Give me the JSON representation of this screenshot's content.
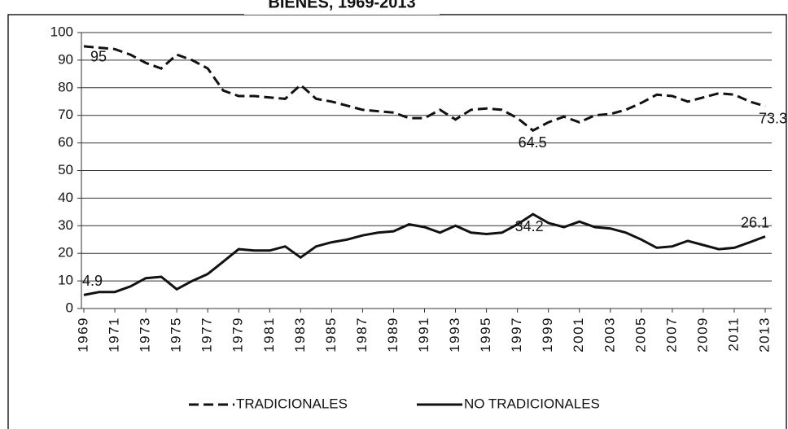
{
  "chart_data": {
    "type": "line",
    "title": "BIENES, 1969-2013",
    "x": [
      1969,
      1970,
      1971,
      1972,
      1973,
      1974,
      1975,
      1976,
      1977,
      1978,
      1979,
      1980,
      1981,
      1982,
      1983,
      1984,
      1985,
      1986,
      1987,
      1988,
      1989,
      1990,
      1991,
      1992,
      1993,
      1994,
      1995,
      1996,
      1997,
      1998,
      1999,
      2000,
      2001,
      2002,
      2003,
      2004,
      2005,
      2006,
      2007,
      2008,
      2009,
      2010,
      2011,
      2012,
      2013
    ],
    "xlim": [
      1969,
      2013
    ],
    "xticks": [
      1969,
      1971,
      1973,
      1975,
      1977,
      1979,
      1981,
      1983,
      1985,
      1987,
      1989,
      1991,
      1993,
      1995,
      1997,
      1999,
      2001,
      2003,
      2005,
      2007,
      2009,
      2011,
      2013
    ],
    "ylim": [
      0,
      100
    ],
    "yticks": [
      0,
      10,
      20,
      30,
      40,
      50,
      60,
      70,
      80,
      90,
      100
    ],
    "grid": true,
    "series": [
      {
        "name": "TRADICIONALES",
        "color": "#111111",
        "dash": true,
        "values": [
          95,
          94.5,
          94,
          92,
          89,
          87,
          92,
          90,
          87,
          79,
          77,
          77,
          76.5,
          76,
          81,
          76,
          75,
          73.5,
          72,
          71.5,
          71,
          69,
          69,
          72,
          68.5,
          72,
          72.5,
          72,
          69,
          64.5,
          67.5,
          69.5,
          67.5,
          70,
          70.5,
          72,
          74.5,
          77.5,
          77,
          75,
          76.5,
          78,
          77.5,
          75,
          73.3
        ]
      },
      {
        "name": "NO TRADICIONALES",
        "color": "#111111",
        "dash": false,
        "values": [
          4.9,
          6,
          6,
          8,
          11,
          11.5,
          7,
          10,
          12.5,
          17,
          21.5,
          21,
          21,
          22.5,
          18.5,
          22.5,
          24,
          25,
          26.5,
          27.5,
          28,
          30.5,
          29.5,
          27.5,
          30,
          27.5,
          27,
          27.5,
          30.5,
          34.2,
          31,
          29.5,
          31.5,
          29.5,
          29,
          27.5,
          25,
          22,
          22.5,
          24.5,
          23,
          21.5,
          22,
          24,
          26.1
        ]
      }
    ]
  }
}
